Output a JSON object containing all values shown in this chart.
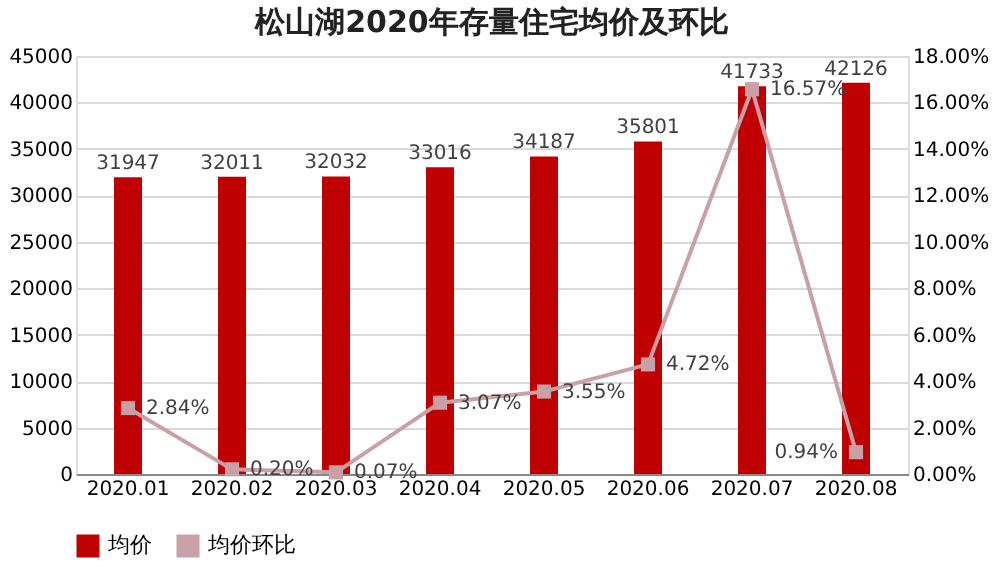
{
  "chart_data": {
    "type": "bar",
    "title": "松山湖2020年存量住宅均价及环比",
    "categories": [
      "2020.01",
      "2020.02",
      "2020.03",
      "2020.04",
      "2020.05",
      "2020.06",
      "2020.07",
      "2020.08"
    ],
    "series": [
      {
        "name": "均价",
        "type": "bar",
        "color": "#c00000",
        "values": [
          31947,
          32011,
          32032,
          33016,
          34187,
          35801,
          41733,
          42126
        ],
        "value_labels": [
          "31947",
          "32011",
          "32032",
          "33016",
          "34187",
          "35801",
          "41733",
          "42126"
        ]
      },
      {
        "name": "均价环比",
        "type": "line",
        "axis": "y2",
        "color": "#c9a0a6",
        "marker": "square",
        "values": [
          2.84,
          0.2,
          0.07,
          3.07,
          3.55,
          4.72,
          16.57,
          0.94
        ],
        "value_labels": [
          "2.84%",
          "0.20%",
          "0.07%",
          "3.07%",
          "3.55%",
          "4.72%",
          "16.57%",
          "0.94%"
        ]
      }
    ],
    "ylim": [
      0,
      45000
    ],
    "yticks": [
      0,
      5000,
      10000,
      15000,
      20000,
      25000,
      30000,
      35000,
      40000,
      45000
    ],
    "y2lim": [
      0,
      18
    ],
    "y2ticks": [
      {
        "value": 0,
        "label": "0.00%"
      },
      {
        "value": 2,
        "label": "2.00%"
      },
      {
        "value": 4,
        "label": "4.00%"
      },
      {
        "value": 6,
        "label": "6.00%"
      },
      {
        "value": 8,
        "label": "8.00%"
      },
      {
        "value": 10,
        "label": "10.00%"
      },
      {
        "value": 12,
        "label": "12.00%"
      },
      {
        "value": 14,
        "label": "14.00%"
      },
      {
        "value": 16,
        "label": "16.00%"
      },
      {
        "value": 18,
        "label": "18.00%"
      }
    ],
    "grid": "y",
    "legend": "bottom"
  }
}
